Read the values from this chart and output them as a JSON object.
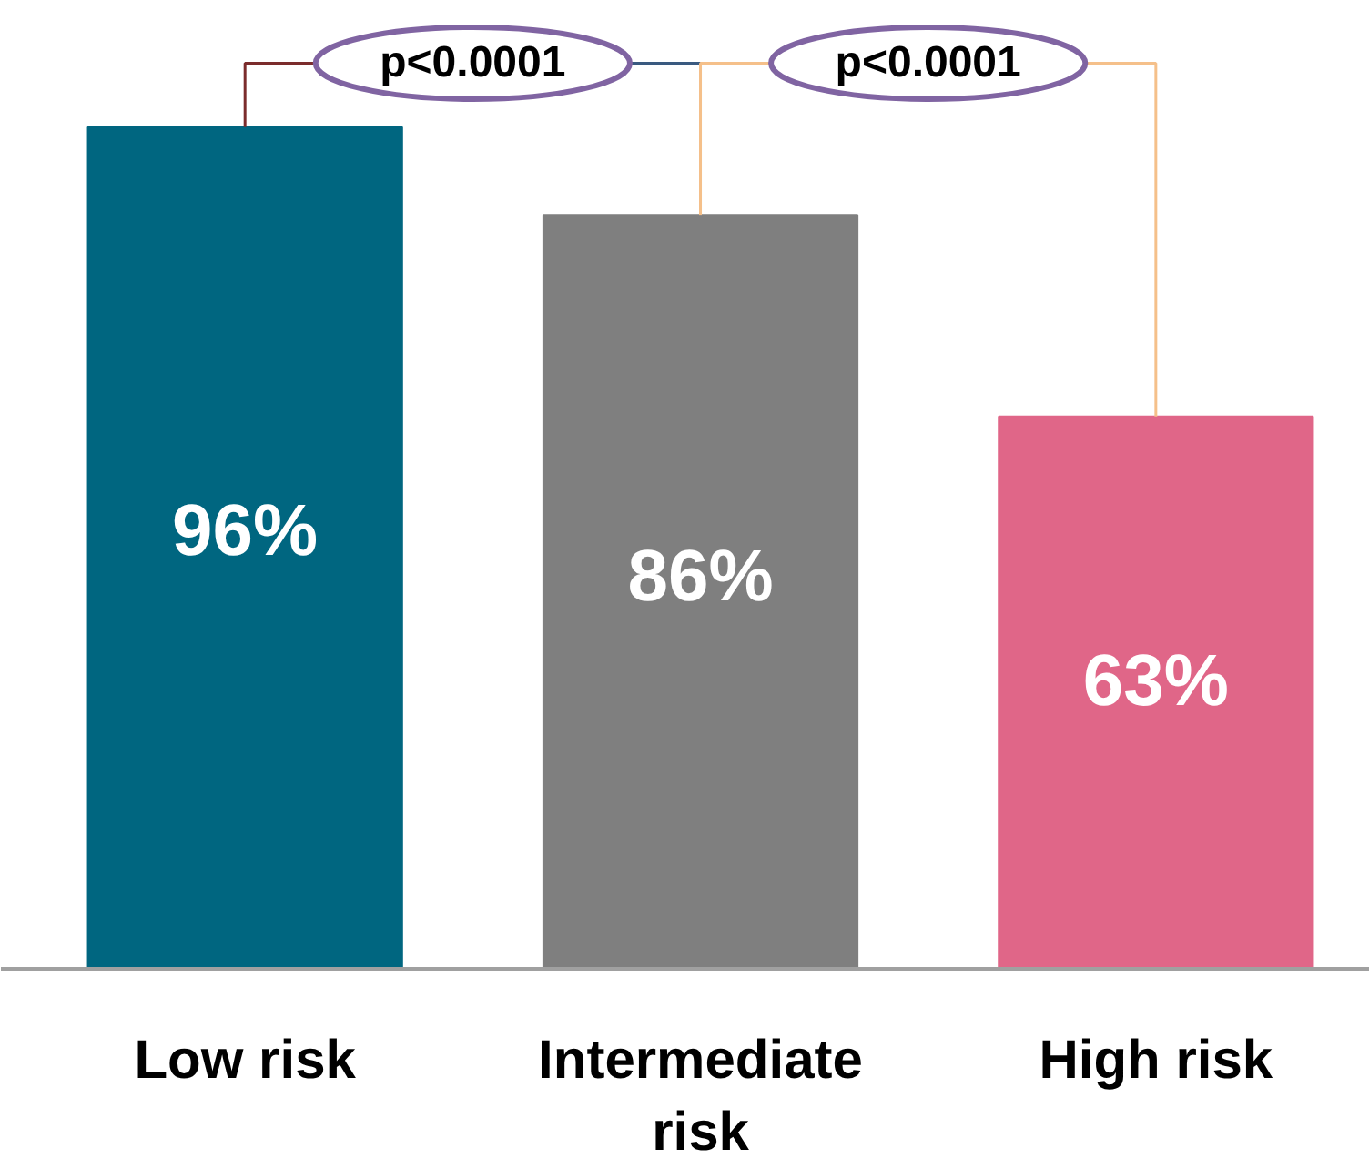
{
  "chart_data": {
    "type": "bar",
    "categories": [
      "Low risk",
      "Intermediate risk",
      "High risk"
    ],
    "values": [
      96,
      86,
      63
    ],
    "colors": [
      "#006680",
      "#7f7f7f",
      "#e06688"
    ],
    "value_labels": [
      "96%",
      "86%",
      "63%"
    ],
    "annotations": [
      "p<0.0001",
      "p<0.0001"
    ],
    "grid": false
  }
}
